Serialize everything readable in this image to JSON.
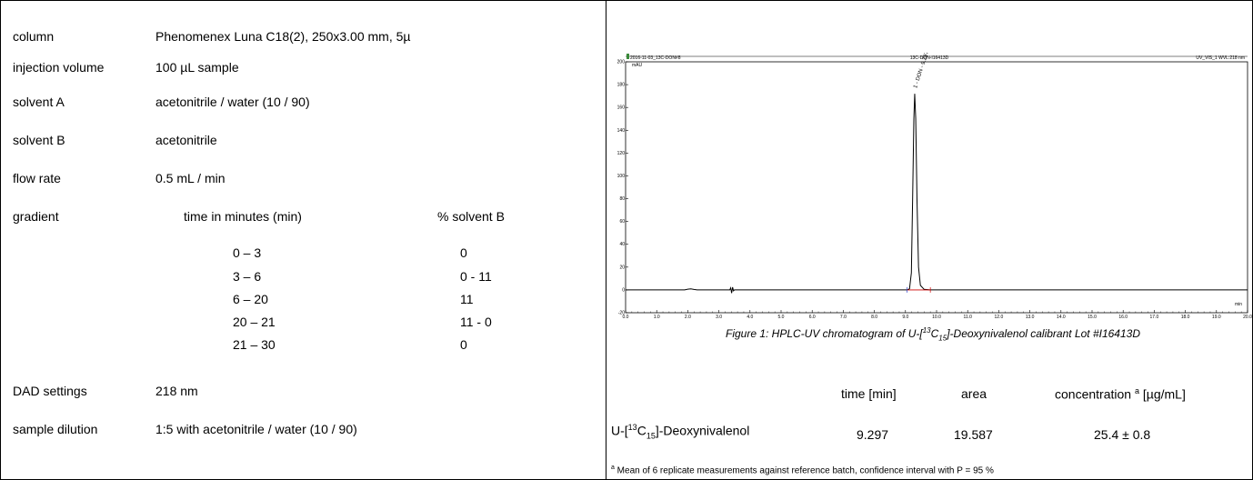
{
  "method": {
    "rows": [
      {
        "label": "column",
        "value": "Phenomenex Luna C18(2), 250x3.00 mm, 5µ"
      },
      {
        "label": "injection volume",
        "value": "100 µL sample"
      },
      {
        "label": "solvent A",
        "value": "acetonitrile / water (10 / 90)"
      },
      {
        "label": "solvent B",
        "value": "acetonitrile"
      },
      {
        "label": "flow rate",
        "value": "0.5 mL / min"
      }
    ],
    "gradient": {
      "label": "gradient",
      "col_time": "time in minutes (min)",
      "col_solvent": "% solvent B",
      "steps": [
        {
          "time": "0 – 3",
          "b": "0"
        },
        {
          "time": "3 – 6",
          "b": "0 - 11"
        },
        {
          "time": "6 – 20",
          "b": "11"
        },
        {
          "time": "20 – 21",
          "b": "11 - 0"
        },
        {
          "time": "21 – 30",
          "b": "0"
        }
      ]
    },
    "dad": {
      "label": "DAD settings",
      "value": "218 nm"
    },
    "dilution": {
      "label": "sample dilution",
      "value": "1:5 with acetonitrile / water (10 / 90)"
    }
  },
  "chart_data": {
    "type": "line",
    "header_left": "2016-11-03_13C-DON#8",
    "header_center": "13C-DON-I16413D",
    "header_right": "UV_VIS_1 WVL:218 nm",
    "ylabel": "mAU",
    "xlabel": "min",
    "xlim": [
      0,
      20
    ],
    "ylim": [
      -20,
      200
    ],
    "x_ticks": [
      "0.0",
      "1.0",
      "2.0",
      "3.0",
      "4.0",
      "5.0",
      "6.0",
      "7.0",
      "8.0",
      "9.0",
      "10.0",
      "11.0",
      "12.0",
      "13.0",
      "14.0",
      "15.0",
      "16.0",
      "17.0",
      "18.0",
      "19.0",
      "20.0"
    ],
    "y_ticks": [
      "-20",
      "0",
      "20",
      "40",
      "60",
      "80",
      "100",
      "120",
      "140",
      "160",
      "180",
      "200"
    ],
    "peak_label": "1 - DON - 9.297",
    "series": [
      {
        "values": [
          [
            0,
            0
          ],
          [
            1.9,
            0
          ],
          [
            2.0,
            0.6
          ],
          [
            2.1,
            0.9
          ],
          [
            2.2,
            0.4
          ],
          [
            2.3,
            0
          ],
          [
            3.35,
            0
          ],
          [
            3.38,
            1.8
          ],
          [
            3.41,
            -2.8
          ],
          [
            3.44,
            2.4
          ],
          [
            3.47,
            -0.8
          ],
          [
            3.5,
            0
          ],
          [
            9.05,
            0
          ],
          [
            9.13,
            1
          ],
          [
            9.19,
            15
          ],
          [
            9.23,
            80
          ],
          [
            9.27,
            150
          ],
          [
            9.297,
            172
          ],
          [
            9.33,
            150
          ],
          [
            9.37,
            80
          ],
          [
            9.42,
            20
          ],
          [
            9.48,
            4
          ],
          [
            9.6,
            0.5
          ],
          [
            9.8,
            0
          ],
          [
            20,
            0
          ]
        ]
      }
    ]
  },
  "caption": {
    "prefix": "Figure 1: HPLC-UV chromatogram of  U-[",
    "sup": "13",
    "mid": "C",
    "sub": "15",
    "suffix": "]-Deoxynivalenol calibrant Lot #I16413D"
  },
  "results": {
    "headers": {
      "time": "time [min]",
      "area": "area",
      "conc_prefix": "concentration ",
      "conc_sup": "a",
      "conc_suffix": " [µg/mL]"
    },
    "row": {
      "name_prefix": "U-[",
      "name_sup": "13",
      "name_mid": "C",
      "name_sub": "15",
      "name_suffix": "]-Deoxynivalenol",
      "time": "9.297",
      "area": "19.587",
      "conc": "25.4 ± 0.8"
    },
    "footnote_sup": "a",
    "footnote": " Mean of 6 replicate measurements against reference batch, confidence interval with P = 95 %"
  },
  "colors": {
    "baseline_marker": "#cc0000",
    "axis": "#000000"
  }
}
